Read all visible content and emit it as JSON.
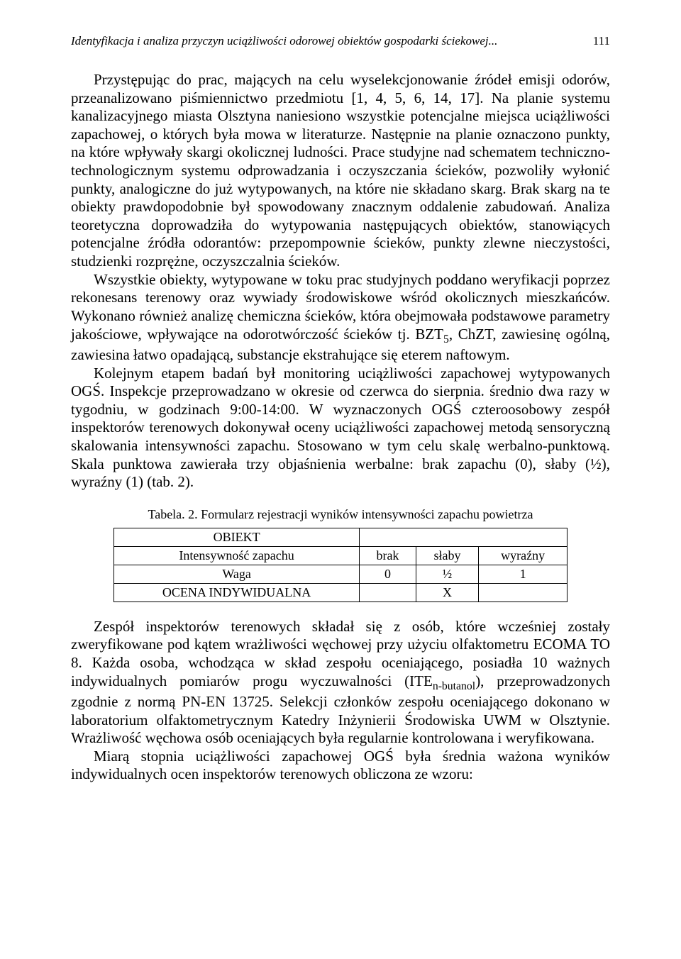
{
  "header": {
    "running_title": "Identyfikacja i analiza przyczyn uciążliwości odorowej obiektów gospodarki ściekowej...",
    "page_number": "111"
  },
  "paragraphs": {
    "p1": "Przystępując do prac, mających na celu wyselekcjonowanie źródeł emisji odorów, przeanalizowano piśmiennictwo przedmiotu [1, 4, 5, 6, 14, 17]. Na planie systemu kanalizacyjnego miasta Olsztyna naniesiono wszystkie potencjalne miejsca uciążliwości zapachowej, o których była mowa w literaturze. Następnie na planie oznaczono punkty, na które wpływały skargi okolicznej ludności. Prace studyjne nad schematem techniczno-technologicznym systemu odprowadzania i oczyszczania ścieków, pozwoliły wyłonić punkty, analogiczne do już wytypowanych, na które nie składano skarg. Brak skarg na te obiekty prawdopodobnie był spowodowany znacznym oddalenie zabudowań. Analiza teoretyczna doprowadziła do wytypowania następujących obiektów, stanowiących potencjalne źródła odorantów: przepompownie ścieków, punkty zlewne nieczystości, studzienki rozprężne, oczyszczalnia ścieków.",
    "p2_a": "Wszystkie obiekty, wytypowane w toku prac studyjnych poddano weryfikacji poprzez rekonesans terenowy oraz wywiady środowiskowe wśród okolicznych mieszkańców. Wykonano również analizę chemiczna ścieków, która obejmowała podstawowe parametry jakościowe, wpływające na odorotwórczość ścieków tj. BZT",
    "p2_b": ", ChZT, zawiesinę ogólną, zawiesina łatwo opadającą, substancje ekstrahujące się eterem naftowym.",
    "p3": "Kolejnym etapem badań był monitoring uciążliwości zapachowej wytypowanych OGŚ. Inspekcje przeprowadzano w okresie od czerwca do sierpnia. średnio dwa razy w tygodniu, w godzinach 9:00-14:00. W wyznaczonych OGŚ czteroosobowy zespół inspektorów terenowych dokonywał oceny uciążliwości zapachowej metodą sensoryczną skalowania intensywności zapachu. Stosowano w tym celu skalę werbalno-punktową. Skala punktowa zawierała trzy objaśnienia werbalne: brak zapachu (0), słaby (½), wyraźny (1) (tab. 2).",
    "p4_a": "Zespół inspektorów terenowych składał się z osób, które wcześniej zostały zweryfikowane pod kątem wrażliwości węchowej przy użyciu olfaktometru ECOMA TO 8. Każda osoba, wchodząca w skład zespołu oceniającego, posiadła 10 ważnych indywidualnych pomiarów progu wyczuwalności (ITE",
    "p4_b": "), przeprowadzonych zgodnie z normą PN-EN 13725. Selekcji członków zespołu oceniającego dokonano w laboratorium olfaktometrycznym Katedry Inżynierii Środowiska UWM w Olsztynie. Wrażliwość węchowa osób oceniających była regularnie kontrolowana i weryfikowana.",
    "p5": "Miarą stopnia uciążliwości zapachowej OGŚ była średnia ważona wyników indywidualnych ocen inspektorów terenowych obliczona ze wzoru:"
  },
  "subs": {
    "bzt": "5",
    "ite": "n-butanol"
  },
  "table": {
    "caption": "Tabela. 2. Formularz rejestracji wyników intensywności zapachu powietrza",
    "rows": {
      "r1c1": "OBIEKT",
      "r2c1": "Intensywność zapachu",
      "r2c2": "brak",
      "r2c3": "słaby",
      "r2c4": "wyraźny",
      "r3c1": "Waga",
      "r3c2": "0",
      "r3c3": "½",
      "r3c4": "1",
      "r4c1": "OCENA INDYWIDUALNA",
      "r4c2": "",
      "r4c3": "X",
      "r4c4": ""
    }
  }
}
